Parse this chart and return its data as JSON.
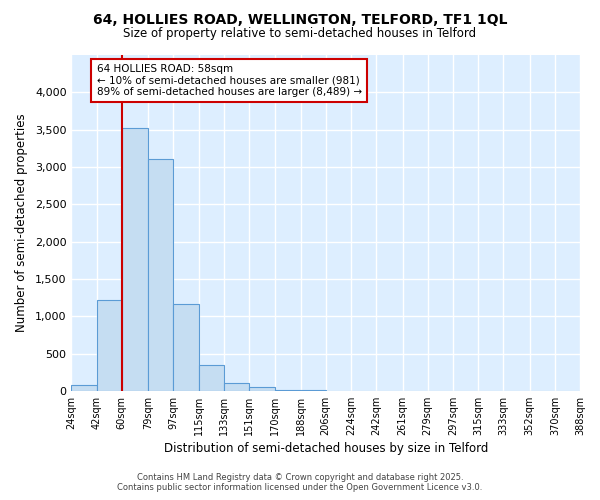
{
  "title_line1": "64, HOLLIES ROAD, WELLINGTON, TELFORD, TF1 1QL",
  "title_line2": "Size of property relative to semi-detached houses in Telford",
  "xlabel": "Distribution of semi-detached houses by size in Telford",
  "ylabel": "Number of semi-detached properties",
  "bins": [
    24,
    42,
    60,
    79,
    97,
    115,
    133,
    151,
    170,
    188,
    206,
    224,
    242,
    261,
    279,
    297,
    315,
    333,
    352,
    370,
    388
  ],
  "counts": [
    75,
    1220,
    3520,
    3100,
    1160,
    350,
    105,
    55,
    10,
    5,
    0,
    0,
    0,
    0,
    0,
    0,
    0,
    0,
    0,
    0
  ],
  "bar_color": "#c5ddf2",
  "bar_edge_color": "#5b9bd5",
  "vline_x": 60,
  "vline_color": "#cc0000",
  "annotation_title": "64 HOLLIES ROAD: 58sqm",
  "annotation_line2": "← 10% of semi-detached houses are smaller (981)",
  "annotation_line3": "89% of semi-detached houses are larger (8,489) →",
  "annotation_box_color": "#ffffff",
  "annotation_edge_color": "#cc0000",
  "ylim": [
    0,
    4500
  ],
  "yticks": [
    0,
    500,
    1000,
    1500,
    2000,
    2500,
    3000,
    3500,
    4000
  ],
  "tick_labels": [
    "24sqm",
    "42sqm",
    "60sqm",
    "79sqm",
    "97sqm",
    "115sqm",
    "133sqm",
    "151sqm",
    "170sqm",
    "188sqm",
    "206sqm",
    "224sqm",
    "242sqm",
    "261sqm",
    "279sqm",
    "297sqm",
    "315sqm",
    "333sqm",
    "352sqm",
    "370sqm",
    "388sqm"
  ],
  "fig_background": "#ffffff",
  "plot_background": "#ddeeff",
  "grid_color": "#ffffff",
  "footer_line1": "Contains HM Land Registry data © Crown copyright and database right 2025.",
  "footer_line2": "Contains public sector information licensed under the Open Government Licence v3.0."
}
